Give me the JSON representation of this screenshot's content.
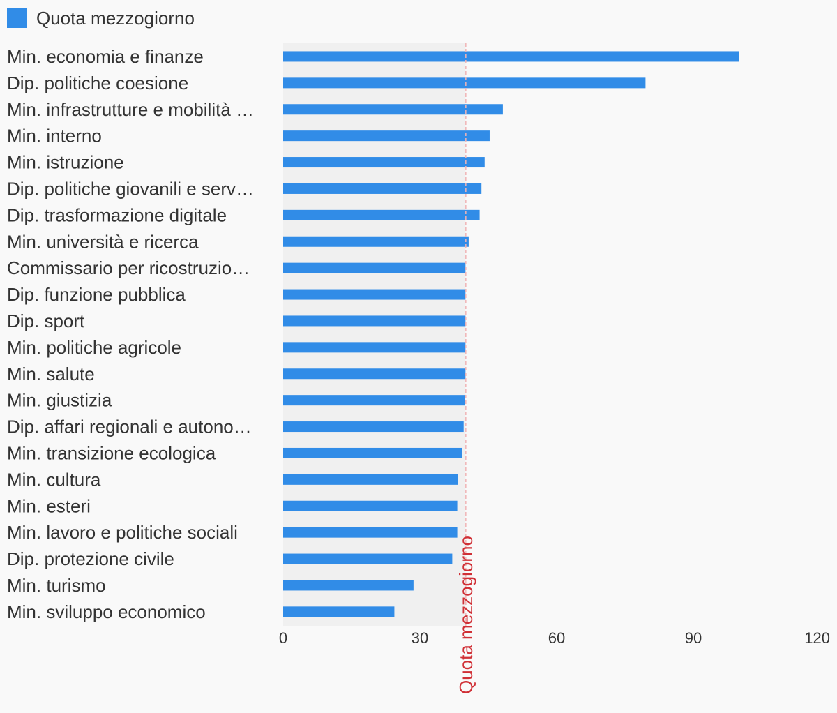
{
  "chart_data": {
    "type": "bar",
    "orientation": "horizontal",
    "categories": [
      "Min. economia e finanze",
      "Dip. politiche coesione",
      "Min. infrastrutture e mobilità …",
      "Min. interno",
      "Min. istruzione",
      "Dip. politiche giovanili e serv…",
      "Dip. trasformazione digitale",
      "Min. università e ricerca",
      "Commissario per ricostruzio…",
      "Dip. funzione pubblica",
      "Dip. sport",
      "Min. politiche agricole",
      "Min. salute",
      "Min. giustizia",
      "Dip. affari regionali e autono…",
      "Min. transizione ecologica",
      "Min. cultura",
      "Min. esteri",
      "Min. lavoro e politiche sociali",
      "Dip. protezione civile",
      "Min. turismo",
      "Min. sviluppo economico"
    ],
    "series": [
      {
        "name": "Quota mezzogiorno",
        "values": [
          100,
          79.5,
          48.2,
          45.3,
          44.2,
          43.5,
          43.1,
          40.7,
          40,
          40,
          40,
          40,
          40,
          39.8,
          39.6,
          39.3,
          38.4,
          38.2,
          38.2,
          37.1,
          28.6,
          24.4
        ]
      }
    ],
    "xlim": [
      0,
      120
    ],
    "xticks": [
      0,
      30,
      60,
      90,
      120
    ],
    "reference_line": {
      "value": 40,
      "label": "Quota mezzogiorno",
      "color": "#d03036"
    },
    "bar_color": "#318ce7",
    "legend_position": "top-left",
    "title": "",
    "xlabel": "",
    "ylabel": "",
    "grid": false
  }
}
